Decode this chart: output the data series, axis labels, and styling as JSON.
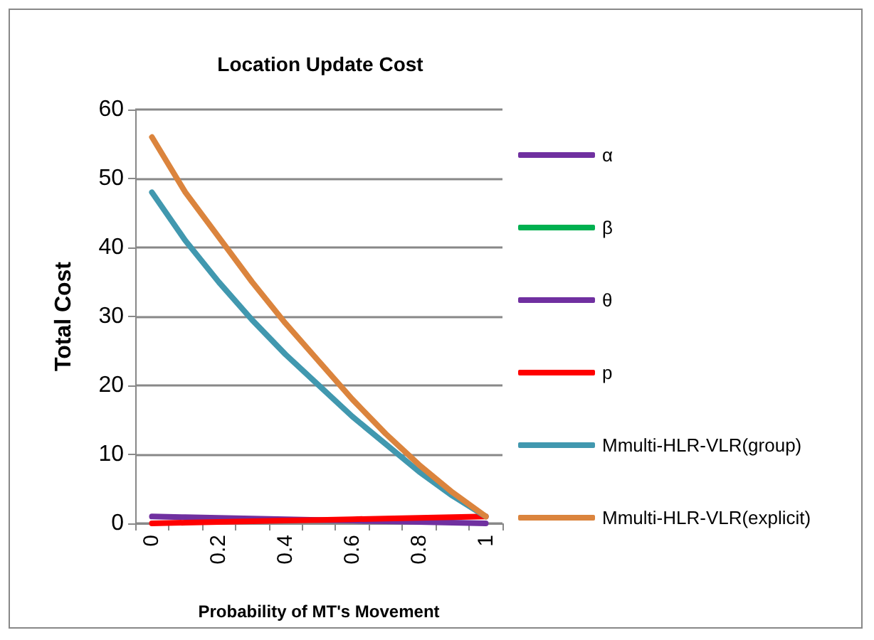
{
  "chart_data": {
    "type": "line",
    "title": "Location Update Cost",
    "xlabel": "Probability of MT's Movement",
    "ylabel": "Total Cost",
    "categories": [
      "0",
      null,
      "0.2",
      null,
      "0.4",
      null,
      "0.6",
      null,
      "0.8",
      null,
      "1"
    ],
    "ylim": [
      0,
      60
    ],
    "yticks": [
      0,
      10,
      20,
      30,
      40,
      50,
      60
    ],
    "grid": "y",
    "legend": "right",
    "marker": "none",
    "line_style": "solid",
    "series": [
      {
        "name": "α",
        "color": "#7030a0",
        "values": [
          1,
          0.9,
          0.8,
          0.7,
          0.6,
          0.5,
          0.4,
          0.3,
          0.2,
          0.1,
          0
        ]
      },
      {
        "name": "β",
        "color": "#00b050",
        "values": [
          null,
          null,
          null,
          null,
          null,
          null,
          null,
          null,
          null,
          null,
          null
        ]
      },
      {
        "name": "θ",
        "color": "#7030a0",
        "values": [
          null,
          null,
          null,
          null,
          null,
          null,
          null,
          null,
          null,
          null,
          null
        ]
      },
      {
        "name": "p",
        "color": "#ff0000",
        "values": [
          0,
          0.1,
          0.2,
          0.3,
          0.4,
          0.5,
          0.6,
          0.7,
          0.8,
          0.9,
          1
        ]
      },
      {
        "name": "Mmulti-HLR-VLR(group)",
        "color": "#4198af",
        "values": [
          48,
          41,
          35,
          29.5,
          24.5,
          20,
          15.5,
          11.5,
          7.5,
          4,
          1
        ]
      },
      {
        "name": "Mmulti-HLR-VLR(explicit)",
        "color": "#db843d",
        "values": [
          56,
          48,
          41.5,
          35,
          29,
          23.5,
          18,
          13,
          8.5,
          4.5,
          1
        ]
      }
    ]
  }
}
